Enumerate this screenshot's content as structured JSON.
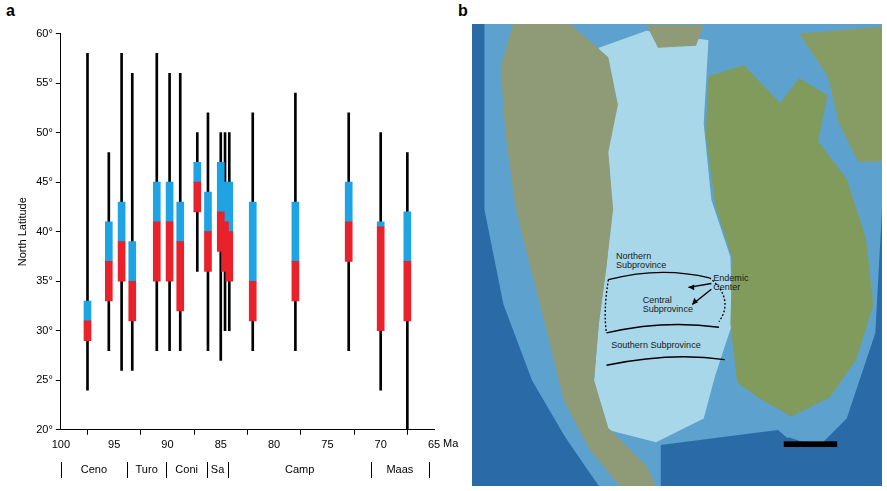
{
  "chart_data": {
    "type": "bar",
    "ylabel": "North Latitude",
    "xlabel": "Ma",
    "x": [
      97.5,
      95.5,
      94.3,
      93.3,
      91,
      89.8,
      88.8,
      87.2,
      86.2,
      85,
      84.6,
      84.2,
      82,
      78,
      73,
      70,
      67.5
    ],
    "series": [
      {
        "color": "#000000",
        "values": [
          [
            24,
            58
          ],
          [
            28,
            48
          ],
          [
            26,
            58
          ],
          [
            26,
            56
          ],
          [
            28,
            58
          ],
          [
            28,
            56
          ],
          [
            28,
            56
          ],
          [
            36,
            50
          ],
          [
            28,
            52
          ],
          [
            27,
            50
          ],
          [
            30,
            50
          ],
          [
            30,
            50
          ],
          [
            28,
            52
          ],
          [
            28,
            54
          ],
          [
            28,
            52
          ],
          [
            24,
            50
          ],
          [
            20,
            48
          ]
        ]
      },
      {
        "color": "#1ea3e4",
        "values": [
          [
            31,
            33
          ],
          [
            37,
            41
          ],
          [
            39,
            43
          ],
          [
            35,
            39
          ],
          [
            41,
            45
          ],
          [
            41,
            45
          ],
          [
            39,
            43
          ],
          [
            45,
            47
          ],
          [
            40,
            44
          ],
          [
            42,
            47
          ],
          [
            41,
            45
          ],
          [
            40,
            45
          ],
          [
            35,
            43
          ],
          [
            37,
            43
          ],
          [
            41,
            45
          ],
          [
            40.5,
            41
          ],
          [
            37,
            42
          ]
        ]
      },
      {
        "color": "#e8212b",
        "values": [
          [
            29,
            31
          ],
          [
            33,
            37
          ],
          [
            35,
            39
          ],
          [
            31,
            35
          ],
          [
            35,
            41
          ],
          [
            35,
            41
          ],
          [
            32,
            39
          ],
          [
            42,
            45
          ],
          [
            36,
            40
          ],
          [
            38,
            42
          ],
          [
            36,
            41
          ],
          [
            35,
            40
          ],
          [
            31,
            35
          ],
          [
            33,
            37
          ],
          [
            37,
            41
          ],
          [
            30,
            40.5
          ],
          [
            31,
            37
          ]
        ]
      }
    ],
    "xlim": [
      100,
      65
    ],
    "xticks": [
      100,
      95,
      90,
      85,
      80,
      75,
      70,
      65
    ],
    "ylim": [
      20,
      60
    ],
    "yticks": [
      {
        "value": 20,
        "label": "20°"
      },
      {
        "value": 25,
        "label": "25°"
      },
      {
        "value": 30,
        "label": "30°"
      },
      {
        "value": 35,
        "label": "35°"
      },
      {
        "value": 40,
        "label": "40°"
      },
      {
        "value": 45,
        "label": "45°"
      },
      {
        "value": 50,
        "label": "50°"
      },
      {
        "value": 55,
        "label": "55°"
      },
      {
        "value": 60,
        "label": "60°"
      }
    ],
    "grid": false,
    "stages": [
      {
        "label": "Ceno",
        "start": 100,
        "end": 93.8
      },
      {
        "label": "Turo",
        "start": 93.8,
        "end": 90.1
      },
      {
        "label": "Coni",
        "start": 90.1,
        "end": 86.3
      },
      {
        "label": "Sa",
        "start": 86.3,
        "end": 84.3
      },
      {
        "label": "Camp",
        "start": 84.3,
        "end": 70.9
      },
      {
        "label": "Maas",
        "start": 70.9,
        "end": 65.5
      }
    ]
  },
  "panel_labels": [
    "a",
    "b"
  ],
  "map": {
    "labels": [
      "Northern Subprovince",
      "Endemic Center",
      "Central Subprovince",
      "Southern Subprovince"
    ]
  }
}
